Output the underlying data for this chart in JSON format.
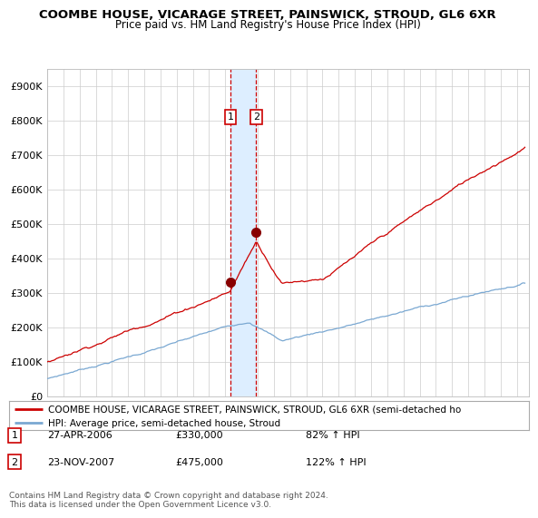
{
  "title": "COOMBE HOUSE, VICARAGE STREET, PAINSWICK, STROUD, GL6 6XR",
  "subtitle": "Price paid vs. HM Land Registry's House Price Index (HPI)",
  "title_fontsize": 9.5,
  "subtitle_fontsize": 8.5,
  "background_color": "#ffffff",
  "plot_bg_color": "#ffffff",
  "grid_color": "#cccccc",
  "ylim": [
    0,
    950000
  ],
  "yticks": [
    0,
    100000,
    200000,
    300000,
    400000,
    500000,
    600000,
    700000,
    800000,
    900000
  ],
  "ytick_labels": [
    "£0",
    "£100K",
    "£200K",
    "£300K",
    "£400K",
    "£500K",
    "£600K",
    "£700K",
    "£800K",
    "£900K"
  ],
  "red_line_color": "#cc0000",
  "blue_line_color": "#7aa8d2",
  "marker_color": "#880000",
  "vline_color": "#cc0000",
  "vband_color": "#ddeeff",
  "transaction1_year": 2006.32,
  "transaction2_year": 2007.9,
  "transaction1_price": 330000,
  "transaction2_price": 475000,
  "legend_red_label": "COOMBE HOUSE, VICARAGE STREET, PAINSWICK, STROUD, GL6 6XR (semi-detached ho",
  "legend_blue_label": "HPI: Average price, semi-detached house, Stroud",
  "table_rows": [
    {
      "num": "1",
      "date": "27-APR-2006",
      "price": "£330,000",
      "hpi": "82% ↑ HPI"
    },
    {
      "num": "2",
      "date": "23-NOV-2007",
      "price": "£475,000",
      "hpi": "122% ↑ HPI"
    }
  ],
  "footer": "Contains HM Land Registry data © Crown copyright and database right 2024.\nThis data is licensed under the Open Government Licence v3.0."
}
